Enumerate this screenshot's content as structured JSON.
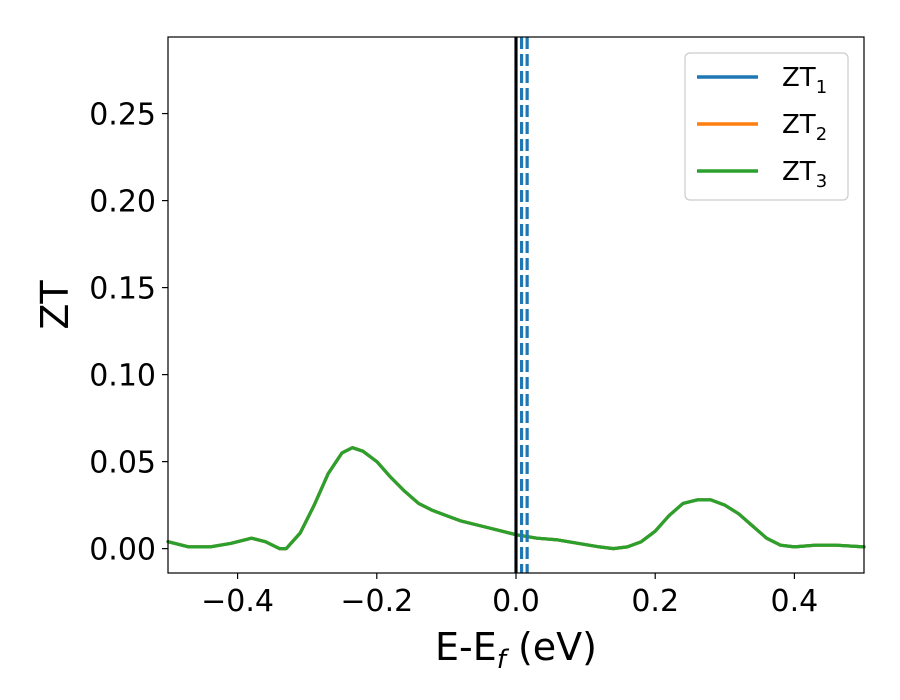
{
  "chart_data": {
    "type": "line",
    "xlabel": "E-E",
    "xlabel_sub": "f",
    "xlabel_unit": " (eV)",
    "ylabel": "ZT",
    "xlim": [
      -0.5,
      0.5
    ],
    "ylim": [
      -0.014,
      0.294
    ],
    "xticks": [
      -0.4,
      -0.2,
      0.0,
      0.2,
      0.4
    ],
    "xtick_labels": [
      "−0.4",
      "−0.2",
      "0.0",
      "0.2",
      "0.4"
    ],
    "yticks": [
      0.0,
      0.05,
      0.1,
      0.15,
      0.2,
      0.25
    ],
    "ytick_labels": [
      "0.00",
      "0.05",
      "0.10",
      "0.15",
      "0.20",
      "0.25"
    ],
    "grid": false,
    "legend_position": "top-right",
    "vertical_lines": [
      {
        "x": 0.0,
        "color": "#000000",
        "style": "solid"
      },
      {
        "x": 0.0,
        "color": "#1f77b4",
        "style": "solid"
      },
      {
        "x": 0.008,
        "color": "#1f77b4",
        "style": "dashed"
      },
      {
        "x": 0.016,
        "color": "#1f77b4",
        "style": "dashed"
      }
    ],
    "series": [
      {
        "name": "ZT",
        "name_sub": "1",
        "color": "#1f77b4",
        "x": [
          -0.5,
          -0.47,
          -0.44,
          -0.41,
          -0.38,
          -0.36,
          -0.34,
          -0.33,
          -0.31,
          -0.29,
          -0.27,
          -0.25,
          -0.235,
          -0.22,
          -0.2,
          -0.18,
          -0.16,
          -0.14,
          -0.12,
          -0.1,
          -0.08,
          -0.05,
          -0.02,
          0.0,
          0.03,
          0.06,
          0.09,
          0.12,
          0.14,
          0.16,
          0.18,
          0.2,
          0.22,
          0.24,
          0.26,
          0.28,
          0.3,
          0.32,
          0.34,
          0.36,
          0.38,
          0.4,
          0.43,
          0.46,
          0.5
        ],
        "y": [
          0.004,
          0.001,
          0.001,
          0.003,
          0.006,
          0.004,
          0.0,
          0.0,
          0.009,
          0.025,
          0.043,
          0.055,
          0.058,
          0.056,
          0.05,
          0.041,
          0.033,
          0.026,
          0.022,
          0.019,
          0.016,
          0.013,
          0.01,
          0.008,
          0.006,
          0.005,
          0.003,
          0.001,
          0.0,
          0.001,
          0.004,
          0.01,
          0.019,
          0.026,
          0.028,
          0.028,
          0.025,
          0.02,
          0.013,
          0.006,
          0.002,
          0.001,
          0.002,
          0.002,
          0.001
        ]
      },
      {
        "name": "ZT",
        "name_sub": "2",
        "color": "#ff7f0e",
        "x": [
          -0.5,
          -0.47,
          -0.44,
          -0.41,
          -0.38,
          -0.36,
          -0.34,
          -0.33,
          -0.31,
          -0.29,
          -0.27,
          -0.25,
          -0.235,
          -0.22,
          -0.2,
          -0.18,
          -0.16,
          -0.14,
          -0.12,
          -0.1,
          -0.08,
          -0.05,
          -0.02,
          0.0,
          0.03,
          0.06,
          0.09,
          0.12,
          0.14,
          0.16,
          0.18,
          0.2,
          0.22,
          0.24,
          0.26,
          0.28,
          0.3,
          0.32,
          0.34,
          0.36,
          0.38,
          0.4,
          0.43,
          0.46,
          0.5
        ],
        "y": [
          0.004,
          0.001,
          0.001,
          0.003,
          0.006,
          0.004,
          0.0,
          0.0,
          0.009,
          0.025,
          0.043,
          0.055,
          0.058,
          0.056,
          0.05,
          0.041,
          0.033,
          0.026,
          0.022,
          0.019,
          0.016,
          0.013,
          0.01,
          0.008,
          0.006,
          0.005,
          0.003,
          0.001,
          0.0,
          0.001,
          0.004,
          0.01,
          0.019,
          0.026,
          0.028,
          0.028,
          0.025,
          0.02,
          0.013,
          0.006,
          0.002,
          0.001,
          0.002,
          0.002,
          0.001
        ]
      },
      {
        "name": "ZT",
        "name_sub": "3",
        "color": "#2ca02c",
        "x": [
          -0.5,
          -0.47,
          -0.44,
          -0.41,
          -0.38,
          -0.36,
          -0.34,
          -0.33,
          -0.31,
          -0.29,
          -0.27,
          -0.25,
          -0.235,
          -0.22,
          -0.2,
          -0.18,
          -0.16,
          -0.14,
          -0.12,
          -0.1,
          -0.08,
          -0.05,
          -0.02,
          0.0,
          0.03,
          0.06,
          0.09,
          0.12,
          0.14,
          0.16,
          0.18,
          0.2,
          0.22,
          0.24,
          0.26,
          0.28,
          0.3,
          0.32,
          0.34,
          0.36,
          0.38,
          0.4,
          0.43,
          0.46,
          0.5
        ],
        "y": [
          0.004,
          0.001,
          0.001,
          0.003,
          0.006,
          0.004,
          0.0,
          0.0,
          0.009,
          0.025,
          0.043,
          0.055,
          0.058,
          0.056,
          0.05,
          0.041,
          0.033,
          0.026,
          0.022,
          0.019,
          0.016,
          0.013,
          0.01,
          0.008,
          0.006,
          0.005,
          0.003,
          0.001,
          0.0,
          0.001,
          0.004,
          0.01,
          0.019,
          0.026,
          0.028,
          0.028,
          0.025,
          0.02,
          0.013,
          0.006,
          0.002,
          0.001,
          0.002,
          0.002,
          0.001
        ]
      }
    ]
  }
}
